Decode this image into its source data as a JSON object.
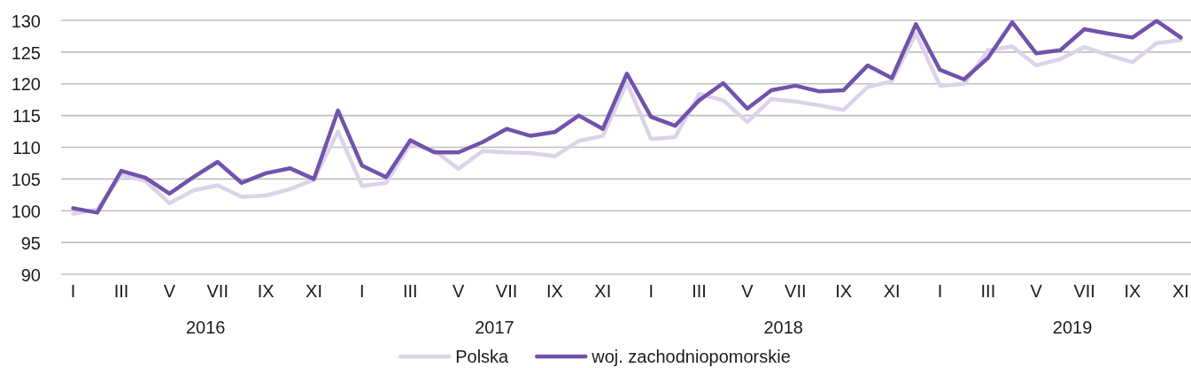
{
  "chart_data": {
    "type": "line",
    "categories": [
      "I",
      null,
      "III",
      null,
      "V",
      null,
      "VII",
      null,
      "IX",
      null,
      "XI",
      null,
      "I",
      null,
      "III",
      null,
      "V",
      null,
      "VII",
      null,
      "IX",
      null,
      "XI",
      null,
      "I",
      null,
      "III",
      null,
      "V",
      null,
      "VII",
      null,
      "IX",
      null,
      "XI",
      null,
      "I",
      null,
      "III",
      null,
      "V",
      null,
      "VII",
      null,
      "IX",
      null,
      "XI"
    ],
    "series": [
      {
        "name": "Polska",
        "color": "#dcd2ea",
        "values": [
          99.5,
          100.2,
          105.7,
          104.7,
          101.2,
          103.2,
          104.0,
          102.2,
          102.4,
          103.4,
          104.9,
          112.5,
          103.9,
          104.4,
          110.5,
          109.5,
          106.6,
          109.4,
          109.2,
          109.1,
          108.6,
          111.0,
          111.8,
          120.2,
          111.3,
          111.6,
          118.4,
          117.4,
          114.0,
          117.6,
          117.2,
          116.6,
          115.9,
          119.5,
          120.4,
          127.9,
          119.7,
          120.0,
          125.3,
          125.9,
          122.9,
          123.9,
          125.8,
          124.5,
          123.4,
          126.4,
          126.9
        ]
      },
      {
        "name": "woj. zachodniopomorskie",
        "color": "#7152ab",
        "values": [
          100.4,
          99.7,
          106.3,
          105.2,
          102.7,
          105.3,
          107.7,
          104.4,
          105.9,
          106.7,
          105.0,
          115.8,
          107.1,
          105.3,
          111.1,
          109.2,
          109.2,
          110.8,
          112.9,
          111.8,
          112.4,
          115.0,
          112.9,
          121.6,
          114.8,
          113.4,
          117.4,
          120.1,
          116.1,
          119.0,
          119.7,
          118.8,
          119.0,
          122.9,
          120.9,
          129.4,
          122.2,
          120.7,
          124.1,
          129.7,
          124.8,
          125.3,
          128.6,
          127.9,
          127.3,
          129.9,
          127.3
        ]
      }
    ],
    "ylim": [
      90,
      130
    ],
    "yticks": [
      90,
      95,
      100,
      105,
      110,
      115,
      120,
      125,
      130
    ],
    "grid": "y",
    "legend": "bottom",
    "annotations": [
      "2016",
      "2017",
      "2018",
      "2019"
    ]
  }
}
